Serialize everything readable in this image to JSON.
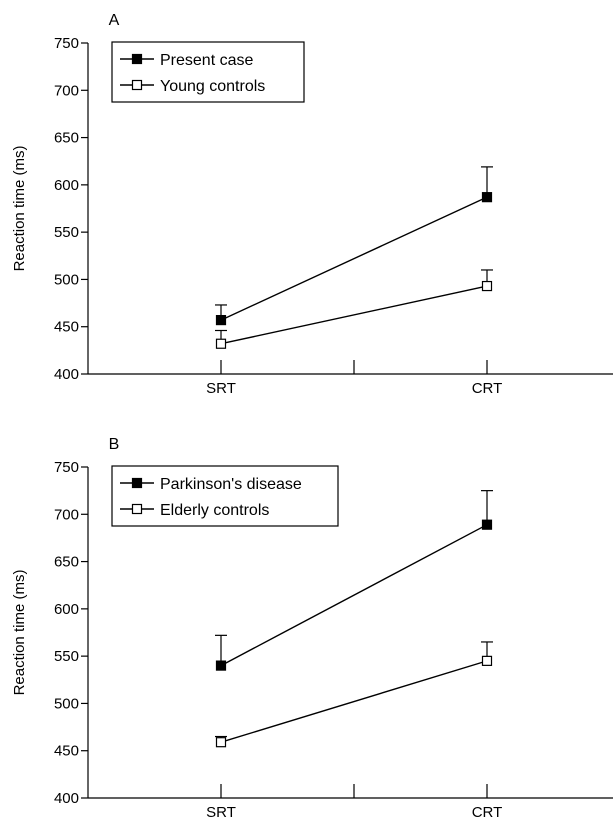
{
  "chart_data": [
    {
      "type": "line",
      "panel_label": "A",
      "categories": [
        "SRT",
        "CRT"
      ],
      "ylabel": "Reaction time (ms)",
      "ylim": [
        400,
        750
      ],
      "yticks": [
        400,
        450,
        500,
        550,
        600,
        650,
        700,
        750
      ],
      "legend_position": "top-left",
      "series": [
        {
          "name": "Present case",
          "marker": "filled-square",
          "values": [
            457,
            587
          ],
          "error_upper": [
            16,
            32
          ]
        },
        {
          "name": "Young controls",
          "marker": "open-square",
          "values": [
            432,
            493
          ],
          "error_upper": [
            14,
            17
          ]
        }
      ]
    },
    {
      "type": "line",
      "panel_label": "B",
      "categories": [
        "SRT",
        "CRT"
      ],
      "ylabel": "Reaction time (ms)",
      "ylim": [
        400,
        750
      ],
      "yticks": [
        400,
        450,
        500,
        550,
        600,
        650,
        700,
        750
      ],
      "legend_position": "top-left",
      "series": [
        {
          "name": "Parkinson's disease",
          "marker": "filled-square",
          "values": [
            540,
            689
          ],
          "error_upper": [
            32,
            36
          ]
        },
        {
          "name": "Elderly controls",
          "marker": "open-square",
          "values": [
            459,
            545
          ],
          "error_upper": [
            6,
            20
          ]
        }
      ]
    }
  ]
}
